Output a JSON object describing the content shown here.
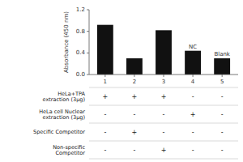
{
  "chart_data": {
    "type": "bar",
    "categories": [
      "1",
      "2",
      "3",
      "4",
      "5"
    ],
    "values": [
      0.92,
      0.3,
      0.82,
      0.44,
      0.3
    ],
    "color": "#111111",
    "ylabel": "Absorbance (450 nm)",
    "ylim": [
      0,
      1.2
    ],
    "yticks": [
      {
        "value": 0.0,
        "label": "0.0"
      },
      0.4,
      0.8,
      1.2
    ],
    "grid": false,
    "annotations": [
      null,
      null,
      null,
      "NC",
      "Blank"
    ],
    "table_rows": [
      {
        "label": "HeLa+TPA\nextraction (3μg)",
        "values": [
          "+",
          "+",
          "+",
          "-",
          "-"
        ]
      },
      {
        "label": "HeLa cell Nuclear\nextraction (3μg)",
        "values": [
          "-",
          "-",
          "-",
          "+",
          "-"
        ]
      },
      {
        "label": "Specific Competitor",
        "values": [
          "-",
          "+",
          "-",
          "-",
          "-"
        ]
      },
      {
        "label": "Non-specific\nCompetitor",
        "values": [
          "-",
          "-",
          "+",
          "-",
          "-"
        ]
      }
    ]
  }
}
